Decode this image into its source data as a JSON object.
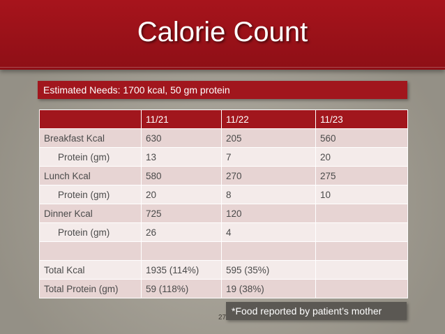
{
  "slide": {
    "title": "Calorie Count",
    "needs": "Estimated Needs: 1700 kcal, 50 gm protein",
    "footnote": "*Food reported by patient’s mother",
    "number": "27"
  },
  "table": {
    "headers": [
      "",
      "11/21",
      "11/22",
      "11/23"
    ],
    "rows": [
      [
        "Breakfast Kcal",
        "630",
        "205",
        "560"
      ],
      [
        "Protein (gm)",
        "13",
        "7",
        "20"
      ],
      [
        "Lunch Kcal",
        "580",
        "270",
        "275"
      ],
      [
        "Protein (gm)",
        "20",
        "8",
        "10"
      ],
      [
        "Dinner Kcal",
        "725",
        "120",
        ""
      ],
      [
        "Protein (gm)",
        "26",
        "4",
        ""
      ],
      [
        "",
        "",
        "",
        ""
      ],
      [
        "Total Kcal",
        "1935 (114%)",
        "595 (35%)",
        ""
      ],
      [
        "Total Protein (gm)",
        "59 (118%)",
        "19 (38%)",
        ""
      ]
    ]
  }
}
